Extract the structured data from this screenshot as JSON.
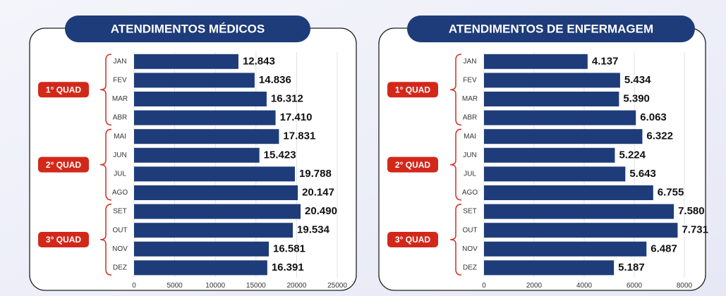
{
  "chart_data": [
    {
      "type": "bar",
      "title": "ATENDIMENTOS MÉDICOS",
      "categories": [
        "JAN",
        "FEV",
        "MAR",
        "ABR",
        "MAI",
        "JUN",
        "JUL",
        "AGO",
        "SET",
        "OUT",
        "NOV",
        "DEZ"
      ],
      "values": [
        12843,
        14836,
        16312,
        17410,
        17831,
        15423,
        19788,
        20147,
        20490,
        19534,
        16581,
        16391
      ],
      "value_labels": [
        "12.843",
        "14.836",
        "16.312",
        "17.410",
        "17.831",
        "15.423",
        "19.788",
        "20.147",
        "20.490",
        "19.534",
        "16.581",
        "16.391"
      ],
      "groups": [
        "1° QUAD",
        "2° QUAD",
        "3° QUAD"
      ],
      "color": "#1e3c7a",
      "xlim": [
        0,
        25000
      ],
      "xticks": [
        0,
        5000,
        10000,
        15000,
        20000,
        25000
      ],
      "grid": true
    },
    {
      "type": "bar",
      "title": "ATENDIMENTOS DE ENFERMAGEM",
      "categories": [
        "JAN",
        "FEV",
        "MAR",
        "ABR",
        "MAI",
        "JUN",
        "JUL",
        "AGO",
        "SET",
        "OUT",
        "NOV",
        "DEZ"
      ],
      "values": [
        4137,
        5434,
        5390,
        6063,
        6322,
        5224,
        5643,
        6755,
        7580,
        7731,
        6487,
        5187
      ],
      "value_labels": [
        "4.137",
        "5.434",
        "5.390",
        "6.063",
        "6.322",
        "5.224",
        "5.643",
        "6.755",
        "7.580",
        "7.731",
        "6.487",
        "5.187"
      ],
      "groups": [
        "1° QUAD",
        "2° QUAD",
        "3° QUAD"
      ],
      "color": "#1e3c7a",
      "xlim": [
        0,
        8000
      ],
      "xticks": [
        0,
        2000,
        4000,
        6000,
        8000
      ],
      "grid": true
    }
  ]
}
